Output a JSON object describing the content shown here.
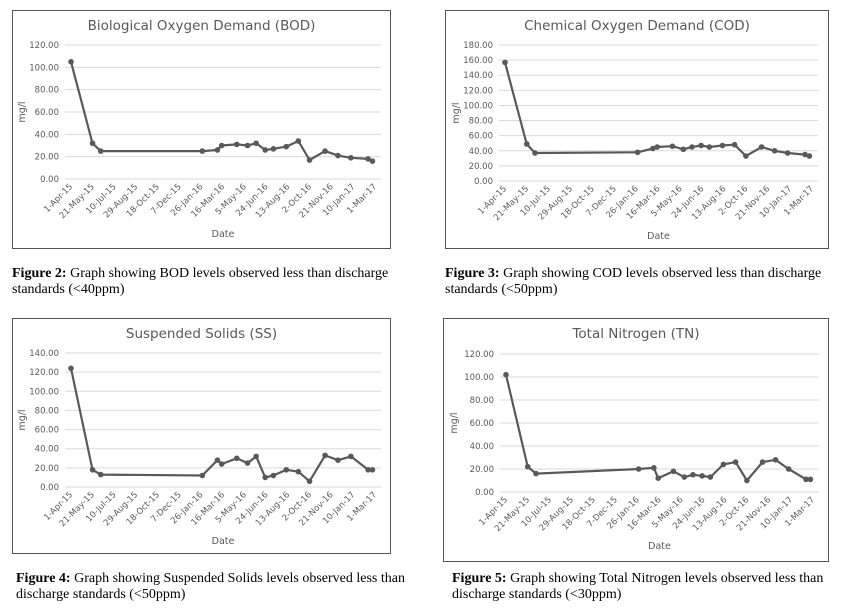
{
  "charts": [
    {
      "id": "bod",
      "caption_label": "Figure 2:",
      "caption_text": " Graph showing BOD levels observed less than discharge standards (<40ppm)",
      "chart_data": {
        "type": "line",
        "title": "Biological Oxygen Demand (BOD)",
        "xlabel": "Date",
        "ylabel": "mg/l",
        "ylim": [
          0,
          120
        ],
        "yticks": [
          "0.00",
          "20.00",
          "40.00",
          "60.00",
          "80.00",
          "100.00",
          "120.00"
        ],
        "xticks": [
          "1-Apr-15",
          "21-May-15",
          "10-Jul-15",
          "29-Aug-15",
          "18-Oct-15",
          "7-Dec-15",
          "26-Jan-16",
          "16-Mar-16",
          "5-May-16",
          "24-Jun-16",
          "13-Aug-16",
          "2-Oct-16",
          "21-Nov-16",
          "10-Jan-17",
          "1-Mar-17"
        ],
        "x_days": [
          0,
          50,
          69,
          305,
          340,
          350,
          385,
          410,
          430,
          451,
          470,
          500,
          528,
          554,
          590,
          620,
          650,
          690,
          700
        ],
        "values": [
          105,
          32,
          25,
          25,
          26,
          30,
          31,
          30,
          32,
          26,
          27,
          29,
          34,
          17,
          25,
          21,
          19,
          18,
          16
        ]
      }
    },
    {
      "id": "cod",
      "caption_label": "Figure 3:",
      "caption_text": " Graph showing COD levels observed less than discharge standards (<50ppm)",
      "chart_data": {
        "type": "line",
        "title": "Chemical Oxygen Demand (COD)",
        "xlabel": "Date",
        "ylabel": "mg/l",
        "ylim": [
          0,
          180
        ],
        "yticks": [
          "0.00",
          "20.00",
          "40.00",
          "60.00",
          "80.00",
          "100.00",
          "120.00",
          "140.00",
          "160.00",
          "180.00"
        ],
        "xticks": [
          "1-Apr-15",
          "21-May-15",
          "10-Jul-15",
          "29-Aug-15",
          "18-Oct-15",
          "7-Dec-15",
          "26-Jan-16",
          "16-Mar-16",
          "5-May-16",
          "24-Jun-16",
          "13-Aug-16",
          "2-Oct-16",
          "21-Nov-16",
          "10-Jan-17",
          "1-Mar-17"
        ],
        "x_days": [
          0,
          50,
          69,
          305,
          340,
          350,
          385,
          410,
          430,
          451,
          470,
          500,
          528,
          554,
          590,
          620,
          650,
          690,
          700
        ],
        "values": [
          157,
          49,
          37,
          38,
          43,
          45,
          46,
          42,
          45,
          47,
          45,
          47,
          48,
          33,
          45,
          40,
          37,
          35,
          33
        ]
      }
    },
    {
      "id": "ss",
      "caption_label": "Figure 4:",
      "caption_text": " Graph showing Suspended Solids levels observed less than discharge standards (<50ppm)",
      "chart_data": {
        "type": "line",
        "title": "Suspended Solids (SS)",
        "xlabel": "Date",
        "ylabel": "mg/l",
        "ylim": [
          0,
          140
        ],
        "yticks": [
          "0.00",
          "20.00",
          "40.00",
          "60.00",
          "80.00",
          "100.00",
          "120.00",
          "140.00"
        ],
        "xticks": [
          "1-Apr-15",
          "21-May-15",
          "10-Jul-15",
          "29-Aug-15",
          "18-Oct-15",
          "7-Dec-15",
          "26-Jan-16",
          "16-Mar-16",
          "5-May-16",
          "24-Jun-16",
          "13-Aug-16",
          "2-Oct-16",
          "21-Nov-16",
          "10-Jan-17",
          "1-Mar-17"
        ],
        "x_days": [
          0,
          50,
          69,
          305,
          340,
          350,
          385,
          410,
          430,
          451,
          470,
          500,
          528,
          554,
          590,
          620,
          650,
          690,
          700
        ],
        "values": [
          124,
          18,
          13,
          12,
          28,
          24,
          30,
          25,
          32,
          10,
          12,
          18,
          16,
          6,
          33,
          28,
          32,
          18,
          18
        ]
      }
    },
    {
      "id": "tn",
      "caption_label": "Figure 5:",
      "caption_text": " Graph showing Total Nitrogen levels observed less than discharge standards (<30ppm)",
      "chart_data": {
        "type": "line",
        "title": "Total Nitrogen (TN)",
        "xlabel": "Date",
        "ylabel": "mg/l",
        "ylim": [
          0,
          120
        ],
        "yticks": [
          "0.00",
          "20.00",
          "40.00",
          "60.00",
          "80.00",
          "100.00",
          "120.00"
        ],
        "xticks": [
          "1-Apr-15",
          "21-May-15",
          "10-Jul-15",
          "29-Aug-15",
          "18-Oct-15",
          "7-Dec-15",
          "26-Jan-16",
          "16-Mar-16",
          "5-May-16",
          "24-Jun-16",
          "13-Aug-16",
          "2-Oct-16",
          "21-Nov-16",
          "10-Jan-17",
          "1-Mar-17"
        ],
        "x_days": [
          0,
          50,
          69,
          305,
          340,
          350,
          385,
          410,
          430,
          451,
          470,
          500,
          528,
          554,
          590,
          620,
          650,
          690,
          700
        ],
        "values": [
          102,
          22,
          16,
          20,
          21,
          12,
          18,
          13,
          15,
          14,
          13,
          24,
          26,
          10,
          26,
          28,
          20,
          11,
          11
        ]
      }
    }
  ],
  "colors": {
    "line": "#595959",
    "grid": "#d9d9d9",
    "text": "#595959"
  }
}
